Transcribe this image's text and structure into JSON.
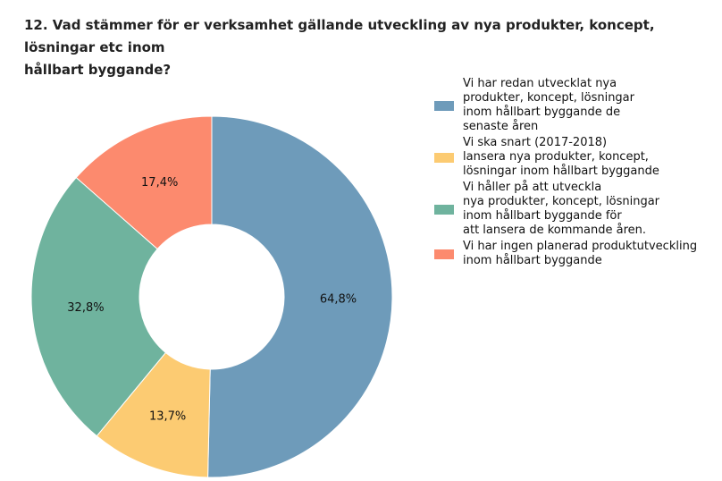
{
  "title": "12. Vad stämmer för er verksamhet gällande utveckling av nya produkter, koncept, lösningar etc inom\nhållbart byggande?",
  "chart_data": {
    "type": "pie",
    "donut": true,
    "legend_position": "right",
    "slices": [
      {
        "label": "Vi har redan utvecklat nya\nprodukter, koncept, lösningar\ninom hållbart byggande de\nsenaste åren",
        "value": 64.8,
        "display": "64,8%",
        "color": "#6e9bba"
      },
      {
        "label": "Vi ska snart (2017-2018)\nlansera nya produkter, koncept,\nlösningar inom hållbart byggande",
        "value": 13.7,
        "display": "13,7%",
        "color": "#fccb72"
      },
      {
        "label": "Vi håller på att utveckla\nnya produkter, koncept, lösningar\ninom hållbart byggande för\natt lansera de kommande åren.",
        "value": 32.8,
        "display": "32,8%",
        "color": "#6fb39e"
      },
      {
        "label": "Vi har ingen planerad produktutveckling\ninom hållbart byggande",
        "value": 17.4,
        "display": "17,4%",
        "color": "#fc8a6e"
      }
    ]
  }
}
